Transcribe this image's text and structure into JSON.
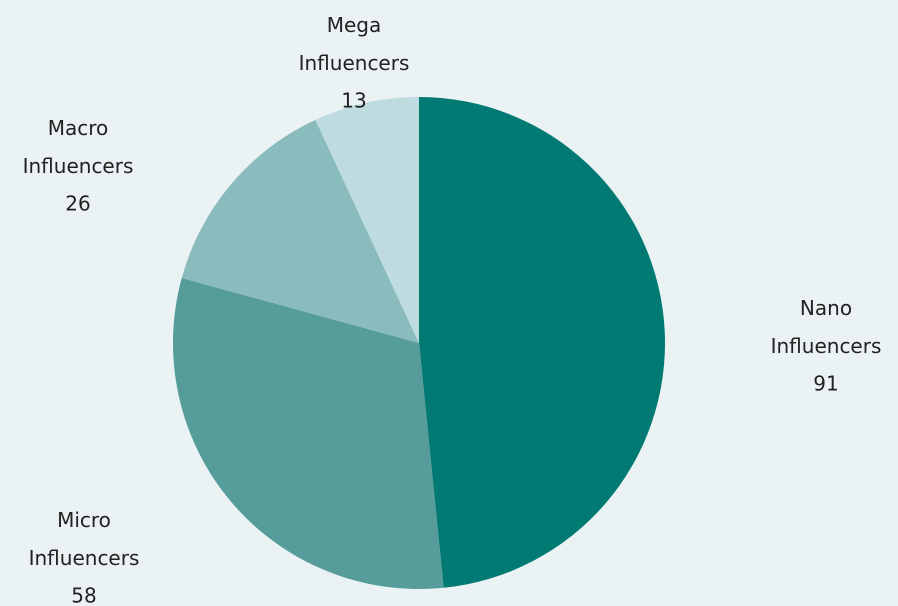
{
  "chart_data": {
    "type": "pie",
    "categories": [
      "Nano Influencers",
      "Micro Influencers",
      "Macro Influencers",
      "Mega Influencers"
    ],
    "values": [
      91,
      58,
      26,
      13
    ],
    "colors": [
      "#007a72",
      "#559c9b",
      "#8bbcbd",
      "#bedcdf"
    ]
  }
}
